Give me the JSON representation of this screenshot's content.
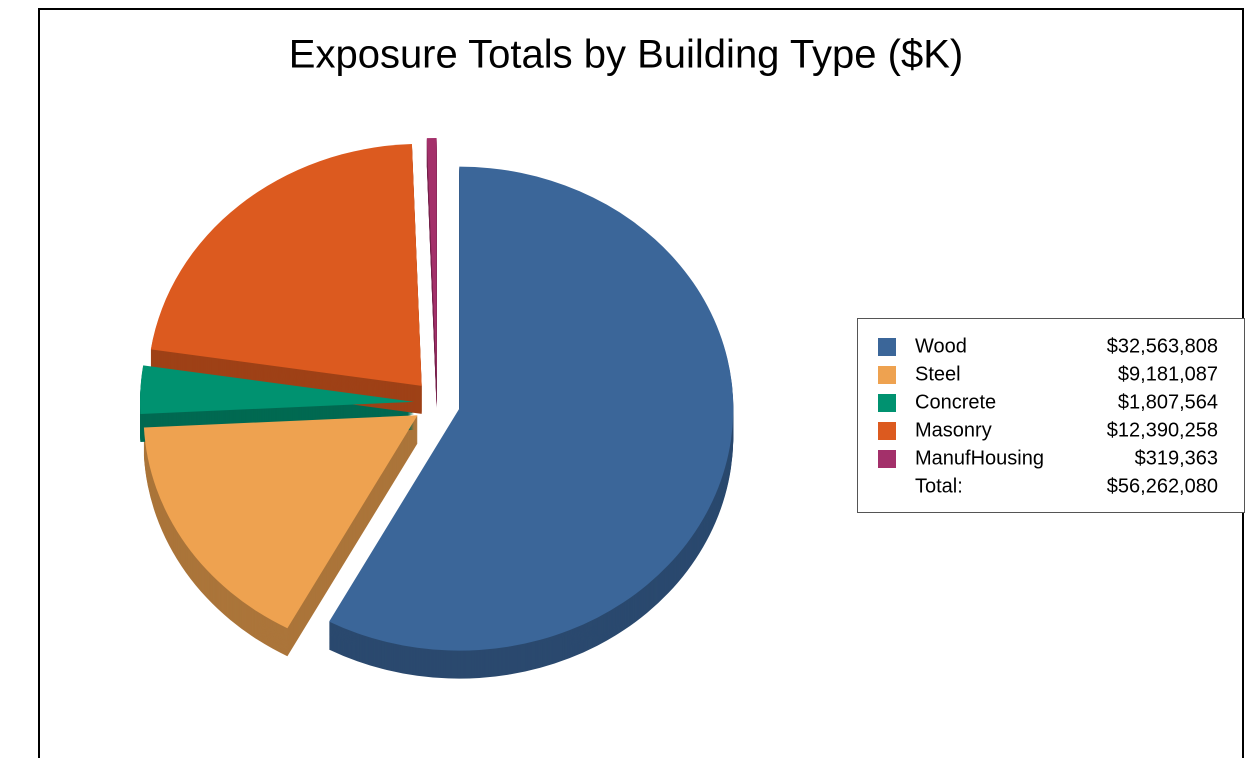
{
  "chart_data": {
    "type": "pie",
    "title": "Exposure Totals by Building Type ($K)",
    "categories": [
      "Wood",
      "Steel",
      "Concrete",
      "Masonry",
      "ManufHousing"
    ],
    "values": [
      32563808,
      9181087,
      1807564,
      12390258,
      319363
    ],
    "value_labels": [
      "$32,563,808",
      "$9,181,087",
      "$1,807,564",
      "$12,390,258",
      "$319,363"
    ],
    "colors": [
      "#3b6699",
      "#eea250",
      "#009270",
      "#dc5a1f",
      "#a3306a"
    ],
    "total_label": "Total:",
    "total": 56262080,
    "total_value_label": "$56,262,080"
  }
}
